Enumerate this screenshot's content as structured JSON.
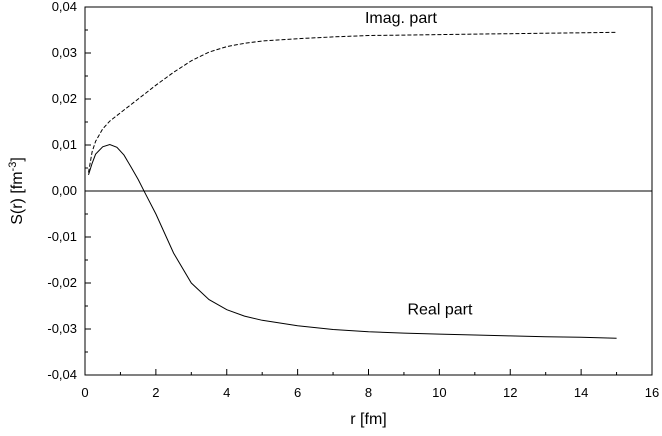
{
  "chart_data": {
    "type": "line",
    "xlabel": "r [fm]",
    "ylabel_main": "S(r) [fm",
    "ylabel_sup": "-3",
    "ylabel_close": "]",
    "xlim": [
      0,
      16
    ],
    "ylim": [
      -0.04,
      0.04
    ],
    "x_ticks": [
      0,
      2,
      4,
      6,
      8,
      10,
      12,
      14,
      16
    ],
    "x_tick_labels": [
      "0",
      "2",
      "4",
      "6",
      "8",
      "10",
      "12",
      "14",
      "16"
    ],
    "y_ticks": [
      -0.04,
      -0.03,
      -0.02,
      -0.01,
      0.0,
      0.01,
      0.02,
      0.03,
      0.04
    ],
    "y_tick_labels": [
      "-0,04",
      "-0,03",
      "-0,02",
      "-0,01",
      "0,00",
      "0,01",
      "0,02",
      "0,03",
      "0,04"
    ],
    "grid": false,
    "reference_line": {
      "y": 0.0,
      "style": "solid"
    },
    "series": [
      {
        "name": "Imag. part",
        "style": "dashed",
        "color": "#000000",
        "x": [
          0.1,
          0.2,
          0.3,
          0.5,
          0.7,
          1.0,
          1.5,
          2.0,
          2.5,
          3.0,
          3.5,
          4.0,
          4.5,
          5.0,
          6.0,
          7.0,
          8.0,
          9.0,
          10.0,
          11.0,
          12.0,
          13.0,
          14.0,
          15.0
        ],
        "y": [
          0.004,
          0.0085,
          0.0108,
          0.0135,
          0.0152,
          0.017,
          0.02,
          0.023,
          0.0258,
          0.0283,
          0.0302,
          0.0314,
          0.0321,
          0.0326,
          0.0331,
          0.0335,
          0.0338,
          0.0339,
          0.034,
          0.0341,
          0.0342,
          0.0343,
          0.0344,
          0.0345
        ]
      },
      {
        "name": "Real part",
        "style": "solid",
        "color": "#000000",
        "x": [
          0.1,
          0.2,
          0.3,
          0.5,
          0.7,
          0.9,
          1.1,
          1.3,
          1.5,
          1.7,
          2.0,
          2.5,
          3.0,
          3.5,
          4.0,
          4.5,
          5.0,
          6.0,
          7.0,
          8.0,
          9.0,
          10.0,
          11.0,
          12.0,
          13.0,
          14.0,
          15.0
        ],
        "y": [
          0.0035,
          0.006,
          0.008,
          0.0096,
          0.0101,
          0.0095,
          0.0078,
          0.0052,
          0.0025,
          -0.0005,
          -0.005,
          -0.0135,
          -0.02,
          -0.0236,
          -0.0258,
          -0.0272,
          -0.0281,
          -0.0293,
          -0.0301,
          -0.0306,
          -0.0309,
          -0.0311,
          -0.0313,
          -0.0315,
          -0.0317,
          -0.0318,
          -0.032
        ]
      }
    ],
    "annotations": [
      {
        "text": "Imag. part",
        "x": 7.9,
        "y": 0.0365
      },
      {
        "text": "Real part",
        "x": 9.1,
        "y": -0.0268
      }
    ]
  }
}
